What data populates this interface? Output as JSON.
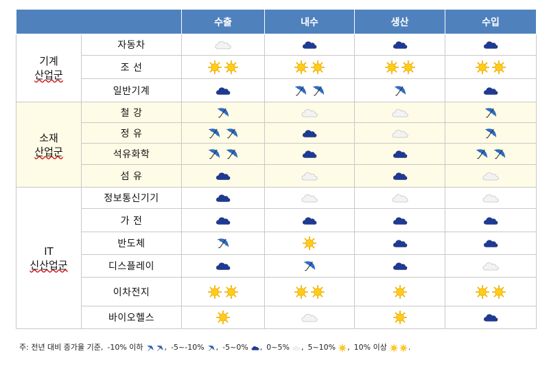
{
  "header": {
    "cols": [
      "수출",
      "내수",
      "생산",
      "수입"
    ]
  },
  "groups": [
    {
      "name_lines": [
        "기계",
        "산업군"
      ],
      "rows": [
        {
          "item": "자동차",
          "values": [
            "cloud",
            "cloud-navy",
            "cloud-navy",
            "cloud-navy"
          ]
        },
        {
          "item": "조 선",
          "values": [
            "sun2",
            "sun2",
            "sun2",
            "sun2"
          ]
        },
        {
          "item": "일반기계",
          "values": [
            "cloud-navy",
            "umbrella2",
            "umbrella",
            "cloud-navy"
          ]
        }
      ]
    },
    {
      "name_lines": [
        "소재",
        "산업군"
      ],
      "rows": [
        {
          "item": "철 강",
          "values": [
            "umbrella",
            "cloud",
            "cloud",
            "umbrella"
          ]
        },
        {
          "item": "정 유",
          "values": [
            "umbrella2",
            "cloud-navy",
            "cloud",
            "umbrella"
          ]
        },
        {
          "item": "석유화학",
          "values": [
            "umbrella2",
            "cloud-navy",
            "cloud-navy",
            "umbrella2"
          ]
        },
        {
          "item": "섬 유",
          "values": [
            "cloud-navy",
            "cloud",
            "cloud-navy",
            "cloud"
          ]
        }
      ]
    },
    {
      "name_lines": [
        "IT",
        "신산업군"
      ],
      "rows": [
        {
          "item": "정보통신기기",
          "values": [
            "cloud-navy",
            "cloud",
            "cloud",
            "cloud"
          ]
        },
        {
          "item": "가 전",
          "values": [
            "cloud-navy",
            "cloud-navy",
            "cloud-navy",
            "cloud-navy"
          ]
        },
        {
          "item": "반도체",
          "values": [
            "umbrella",
            "sun",
            "cloud-navy",
            "cloud-navy"
          ]
        },
        {
          "item": "디스플레이",
          "values": [
            "cloud-navy",
            "umbrella",
            "cloud-navy",
            "cloud"
          ]
        },
        {
          "item": "이차전지",
          "values": [
            "sun2",
            "sun2",
            "sun",
            "sun2"
          ]
        },
        {
          "item": "바이오헬스",
          "values": [
            "sun",
            "cloud",
            "sun",
            "cloud-navy"
          ]
        }
      ]
    }
  ],
  "legend": {
    "prefix": "주: 전년 대비 증가율 기준,",
    "entries": [
      {
        "label": "-10% 이하",
        "icon": "umbrella2"
      },
      {
        "label": "-5~-10%",
        "icon": "umbrella"
      },
      {
        "label": "-5~0%",
        "icon": "cloud-navy"
      },
      {
        "label": "0~5%",
        "icon": "cloud"
      },
      {
        "label": "5~10%",
        "icon": "sun"
      },
      {
        "label": "10% 이상",
        "icon": "sun2"
      }
    ],
    "suffix": "."
  },
  "icon_names": {
    "sun": "sun-icon",
    "sun2": "double-sun-icon",
    "cloud": "white-cloud-icon",
    "cloud-navy": "dark-cloud-icon",
    "umbrella": "umbrella-icon",
    "umbrella2": "double-umbrella-icon"
  },
  "colors": {
    "header_bg": "#4f81bd",
    "highlight_bg": "#fefbe6",
    "navy_cloud": "#1f3a93",
    "sun": "#f5b800",
    "umbrella": "#2a6fd0"
  }
}
